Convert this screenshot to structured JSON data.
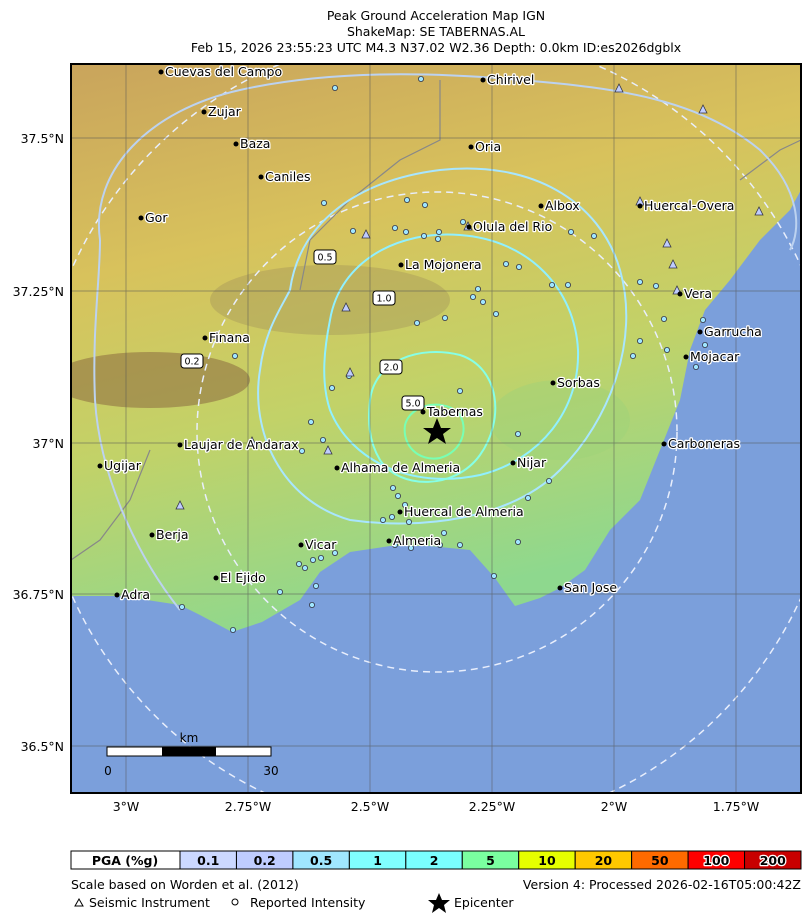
{
  "header": {
    "title": "Peak Ground Acceleration Map IGN",
    "subtitle": "ShakeMap: SE TABERNAS.AL",
    "event": "Feb 15, 2026 23:55:23 UTC M4.3 N37.02 W2.36 Depth: 0.0km ID:es2026dgblx"
  },
  "map": {
    "lat_labels": [
      "37.5°N",
      "37.25°N",
      "37°N",
      "36.75°N",
      "36.5°N"
    ],
    "lon_labels": [
      "3°W",
      "2.75°W",
      "2.5°W",
      "2.25°W",
      "2°W",
      "1.75°W"
    ],
    "cities": [
      "Cuevas del Campo",
      "Zujar",
      "Baza",
      "Caniles",
      "Gor",
      "Chirivel",
      "Oria",
      "Albox",
      "Huercal-Overa",
      "Olula del Rio",
      "La Mojonera",
      "Vera",
      "Garrucha",
      "Mojacar",
      "Finana",
      "Sorbas",
      "Tabernas",
      "Laujar de Andarax",
      "Carboneras",
      "Ugijar",
      "Alhama de Almeria",
      "Nijar",
      "Huercal de Almeria",
      "Berja",
      "Vicar",
      "Almeria",
      "El Ejido",
      "San Jose",
      "Adra"
    ],
    "contour_labels": [
      "0.2",
      "0.5",
      "1.0",
      "2.0",
      "5.0"
    ],
    "scale_bar": {
      "unit": "km",
      "start": "0",
      "end": "30"
    }
  },
  "legend": {
    "title": "PGA (%g)",
    "bins": [
      {
        "label": "0.1",
        "color": "#ccd8ff"
      },
      {
        "label": "0.2",
        "color": "#bfccff"
      },
      {
        "label": "0.5",
        "color": "#a0e6ff"
      },
      {
        "label": "1",
        "color": "#80ffff"
      },
      {
        "label": "2",
        "color": "#7affff"
      },
      {
        "label": "5",
        "color": "#7affa0"
      },
      {
        "label": "10",
        "color": "#e6ff00"
      },
      {
        "label": "20",
        "color": "#ffc800"
      },
      {
        "label": "50",
        "color": "#ff6a00"
      },
      {
        "label": "100",
        "color": "#ff0000"
      },
      {
        "label": "200",
        "color": "#c80000"
      }
    ]
  },
  "footer": {
    "scale_note": "Scale based on Worden et al. (2012)",
    "version": "Version 4: Processed 2026-02-16T05:00:42Z",
    "seismic_instrument": "Seismic Instrument",
    "reported_intensity": "Reported Intensity",
    "epicenter": "Epicenter"
  }
}
